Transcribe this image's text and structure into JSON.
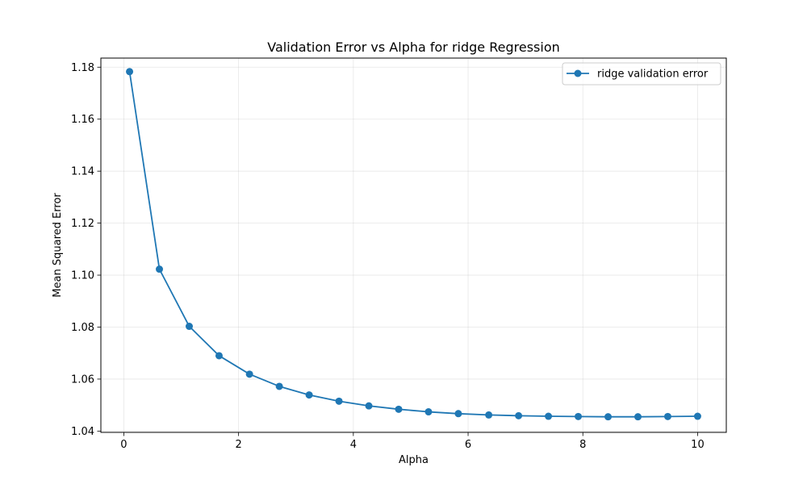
{
  "chart_data": {
    "type": "line",
    "title": "Validation Error vs Alpha for ridge Regression",
    "xlabel": "Alpha",
    "ylabel": "Mean Squared Error",
    "xlim": [
      -0.4,
      10.5
    ],
    "ylim": [
      1.0395,
      1.1835
    ],
    "x_ticks": [
      0,
      2,
      4,
      6,
      8,
      10
    ],
    "x_tick_labels": [
      "0",
      "2",
      "4",
      "6",
      "8",
      "10"
    ],
    "y_ticks": [
      1.04,
      1.06,
      1.08,
      1.1,
      1.12,
      1.14,
      1.16,
      1.18
    ],
    "y_tick_labels": [
      "1.04",
      "1.06",
      "1.08",
      "1.10",
      "1.12",
      "1.14",
      "1.16",
      "1.18"
    ],
    "grid": true,
    "legend_position": "top-right",
    "series": [
      {
        "name": "ridge validation error",
        "color": "#1f77b4",
        "marker": "circle",
        "x": [
          0.1,
          0.62,
          1.14,
          1.66,
          2.19,
          2.71,
          3.23,
          3.75,
          4.27,
          4.79,
          5.31,
          5.83,
          6.36,
          6.88,
          7.4,
          7.92,
          8.44,
          8.96,
          9.48,
          10.0
        ],
        "y": [
          1.1783,
          1.1023,
          1.0803,
          1.069,
          1.0619,
          1.0572,
          1.0539,
          1.0515,
          1.0497,
          1.0484,
          1.0474,
          1.0467,
          1.0462,
          1.0459,
          1.0457,
          1.0456,
          1.0455,
          1.0455,
          1.0456,
          1.0457
        ]
      }
    ]
  }
}
